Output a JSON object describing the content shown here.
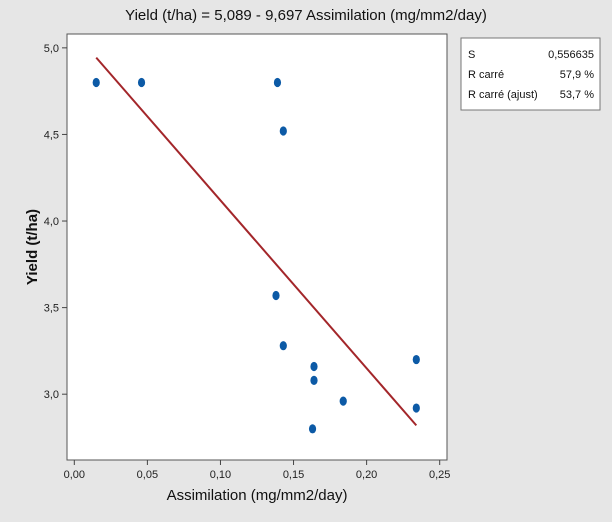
{
  "chart_data": {
    "type": "scatter",
    "title": "Yield (t/ha) = 5,089 - 9,697 Assimilation (mg/mm2/day)",
    "xlabel": "Assimilation (mg/mm2/day)",
    "ylabel": "Yield (t/ha)",
    "xlim": [
      -0.005,
      0.255
    ],
    "ylim": [
      2.62,
      5.08
    ],
    "xticks": [
      0.0,
      0.05,
      0.1,
      0.15,
      0.2,
      0.25
    ],
    "xtick_labels": [
      "0,00",
      "0,05",
      "0,10",
      "0,15",
      "0,20",
      "0,25"
    ],
    "yticks": [
      3.0,
      3.5,
      4.0,
      4.5,
      5.0
    ],
    "ytick_labels": [
      "3,0",
      "3,5",
      "4,0",
      "4,5",
      "5,0"
    ],
    "grid": false,
    "points": [
      {
        "x": 0.015,
        "y": 4.8
      },
      {
        "x": 0.046,
        "y": 4.8
      },
      {
        "x": 0.139,
        "y": 4.8
      },
      {
        "x": 0.143,
        "y": 4.52
      },
      {
        "x": 0.138,
        "y": 3.57
      },
      {
        "x": 0.143,
        "y": 3.28
      },
      {
        "x": 0.164,
        "y": 3.16
      },
      {
        "x": 0.164,
        "y": 3.08
      },
      {
        "x": 0.184,
        "y": 2.96
      },
      {
        "x": 0.163,
        "y": 2.8
      },
      {
        "x": 0.234,
        "y": 3.2
      },
      {
        "x": 0.234,
        "y": 2.92
      }
    ],
    "fit_line": {
      "intercept": 5.089,
      "slope": -9.697,
      "x_range": [
        0.015,
        0.234
      ]
    },
    "colors": {
      "points": "#0c5aa6",
      "fit_line": "#a3262a",
      "plot_background": "#ffffff",
      "figure_background": "#e6e6e6"
    },
    "stats_box": {
      "position": "top-right",
      "rows": [
        {
          "label": "S",
          "value": "0,556635"
        },
        {
          "label": "R carré",
          "value": "57,9 %"
        },
        {
          "label": "R carré (ajust)",
          "value": "53,7 %"
        }
      ]
    }
  }
}
